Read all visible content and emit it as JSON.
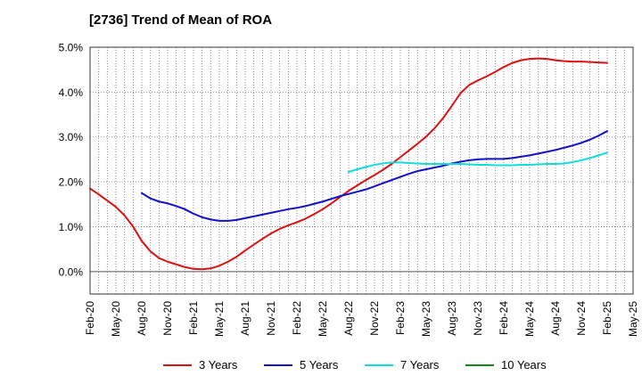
{
  "chart_data": {
    "type": "line",
    "title": "[2736]  Trend of Mean of ROA",
    "xlabel": "",
    "ylabel": "",
    "x_ticks": [
      "Feb-20",
      "May-20",
      "Aug-20",
      "Nov-20",
      "Feb-21",
      "May-21",
      "Aug-21",
      "Nov-21",
      "Feb-22",
      "May-22",
      "Aug-22",
      "Nov-22",
      "Feb-23",
      "May-23",
      "Aug-23",
      "Nov-23",
      "Feb-24",
      "May-24",
      "Aug-24",
      "Nov-24",
      "Feb-25",
      "May-25"
    ],
    "y_ticks": [
      "0.0%",
      "1.0%",
      "2.0%",
      "3.0%",
      "4.0%",
      "5.0%"
    ],
    "ylim": [
      -0.5,
      5.0
    ],
    "grid": true,
    "legend_position": "bottom",
    "series": [
      {
        "name": "3 Years",
        "color": "#dd1111",
        "x": [
          "Feb-20",
          "Mar-20",
          "Apr-20",
          "May-20",
          "Jun-20",
          "Jul-20",
          "Aug-20",
          "Sep-20",
          "Oct-20",
          "Nov-20",
          "Dec-20",
          "Jan-21",
          "Feb-21",
          "Mar-21",
          "Apr-21",
          "May-21",
          "Jun-21",
          "Jul-21",
          "Aug-21",
          "Sep-21",
          "Oct-21",
          "Nov-21",
          "Dec-21",
          "Jan-22",
          "Feb-22",
          "Mar-22",
          "Apr-22",
          "May-22",
          "Jun-22",
          "Jul-22",
          "Aug-22",
          "Sep-22",
          "Oct-22",
          "Nov-22",
          "Dec-22",
          "Jan-23",
          "Feb-23",
          "Mar-23",
          "Apr-23",
          "May-23",
          "Jun-23",
          "Jul-23",
          "Aug-23",
          "Sep-23",
          "Oct-23",
          "Nov-23",
          "Dec-23",
          "Jan-24",
          "Feb-24",
          "Mar-24",
          "Apr-24",
          "May-24",
          "Jun-24",
          "Jul-24",
          "Aug-24",
          "Sep-24",
          "Oct-24",
          "Nov-24",
          "Dec-24",
          "Jan-25",
          "Feb-25"
        ],
        "values": [
          1.85,
          1.72,
          1.58,
          1.44,
          1.25,
          1.0,
          0.68,
          0.45,
          0.3,
          0.22,
          0.16,
          0.1,
          0.06,
          0.05,
          0.07,
          0.13,
          0.22,
          0.33,
          0.47,
          0.6,
          0.73,
          0.85,
          0.95,
          1.03,
          1.1,
          1.18,
          1.28,
          1.39,
          1.52,
          1.66,
          1.8,
          1.92,
          2.04,
          2.15,
          2.27,
          2.4,
          2.55,
          2.7,
          2.85,
          3.01,
          3.2,
          3.43,
          3.7,
          3.98,
          4.16,
          4.26,
          4.35,
          4.45,
          4.56,
          4.65,
          4.71,
          4.74,
          4.75,
          4.74,
          4.71,
          4.69,
          4.68,
          4.68,
          4.67,
          4.66,
          4.65
        ]
      },
      {
        "name": "5 Years",
        "color": "#1111cc",
        "x": [
          "Aug-20",
          "Sep-20",
          "Oct-20",
          "Nov-20",
          "Dec-20",
          "Jan-21",
          "Feb-21",
          "Mar-21",
          "Apr-21",
          "May-21",
          "Jun-21",
          "Jul-21",
          "Aug-21",
          "Sep-21",
          "Oct-21",
          "Nov-21",
          "Dec-21",
          "Jan-22",
          "Feb-22",
          "Mar-22",
          "Apr-22",
          "May-22",
          "Jun-22",
          "Jul-22",
          "Aug-22",
          "Sep-22",
          "Oct-22",
          "Nov-22",
          "Dec-22",
          "Jan-23",
          "Feb-23",
          "Mar-23",
          "Apr-23",
          "May-23",
          "Jun-23",
          "Jul-23",
          "Aug-23",
          "Sep-23",
          "Oct-23",
          "Nov-23",
          "Dec-23",
          "Jan-24",
          "Feb-24",
          "Mar-24",
          "Apr-24",
          "May-24",
          "Jun-24",
          "Jul-24",
          "Aug-24",
          "Sep-24",
          "Oct-24",
          "Nov-24",
          "Dec-24",
          "Jan-25",
          "Feb-25"
        ],
        "values": [
          1.75,
          1.63,
          1.56,
          1.52,
          1.46,
          1.39,
          1.29,
          1.21,
          1.16,
          1.13,
          1.13,
          1.15,
          1.19,
          1.23,
          1.27,
          1.31,
          1.35,
          1.39,
          1.42,
          1.46,
          1.51,
          1.56,
          1.62,
          1.68,
          1.73,
          1.78,
          1.83,
          1.9,
          1.97,
          2.04,
          2.11,
          2.18,
          2.24,
          2.28,
          2.32,
          2.36,
          2.41,
          2.45,
          2.48,
          2.5,
          2.51,
          2.51,
          2.51,
          2.53,
          2.56,
          2.59,
          2.63,
          2.67,
          2.71,
          2.76,
          2.81,
          2.87,
          2.94,
          3.03,
          3.13
        ]
      },
      {
        "name": "7 Years",
        "color": "#11dddd",
        "x": [
          "Aug-22",
          "Sep-22",
          "Oct-22",
          "Nov-22",
          "Dec-22",
          "Jan-23",
          "Feb-23",
          "Mar-23",
          "Apr-23",
          "May-23",
          "Jun-23",
          "Jul-23",
          "Aug-23",
          "Sep-23",
          "Oct-23",
          "Nov-23",
          "Dec-23",
          "Jan-24",
          "Feb-24",
          "Mar-24",
          "Apr-24",
          "May-24",
          "Jun-24",
          "Jul-24",
          "Aug-24",
          "Sep-24",
          "Oct-24",
          "Nov-24",
          "Dec-24",
          "Jan-25",
          "Feb-25"
        ],
        "values": [
          2.22,
          2.28,
          2.33,
          2.38,
          2.41,
          2.43,
          2.43,
          2.42,
          2.41,
          2.4,
          2.4,
          2.4,
          2.4,
          2.4,
          2.39,
          2.38,
          2.38,
          2.37,
          2.37,
          2.37,
          2.38,
          2.38,
          2.39,
          2.4,
          2.4,
          2.41,
          2.44,
          2.48,
          2.53,
          2.59,
          2.65
        ]
      },
      {
        "name": "10 Years",
        "color": "#118811",
        "x": [],
        "values": []
      }
    ]
  }
}
